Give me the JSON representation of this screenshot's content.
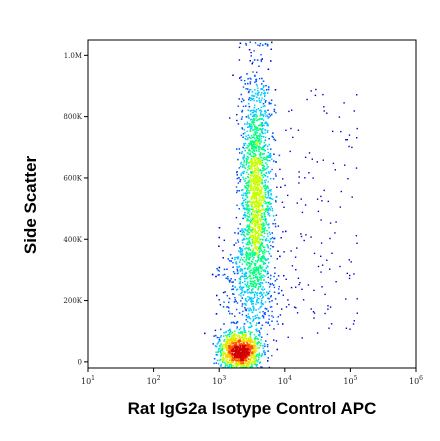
{
  "chart_data": {
    "type": "scatter",
    "subtype": "flow-cytometry-density-dot-plot",
    "xlabel": "Rat IgG2a Isotype Control APC",
    "ylabel": "Side Scatter",
    "x_scale": "log",
    "xlim": [
      10,
      1000000
    ],
    "ylim": [
      -20000,
      1050000
    ],
    "x_ticks": [
      {
        "base": "10",
        "exp": "1",
        "value": 10
      },
      {
        "base": "10",
        "exp": "2",
        "value": 100
      },
      {
        "base": "10",
        "exp": "3",
        "value": 1000
      },
      {
        "base": "10",
        "exp": "4",
        "value": 10000
      },
      {
        "base": "10",
        "exp": "5",
        "value": 100000
      },
      {
        "base": "10",
        "exp": "6",
        "value": 1000000
      }
    ],
    "y_ticks": [
      {
        "label": "0",
        "value": 0
      },
      {
        "label": "200K",
        "value": 200000
      },
      {
        "label": "400K",
        "value": 400000
      },
      {
        "label": "600K",
        "value": 600000
      },
      {
        "label": "800K",
        "value": 800000
      },
      {
        "label": "1.0M",
        "value": 1000000
      }
    ],
    "grid": false,
    "legend": "none",
    "colormap": [
      "#0000c8",
      "#0050ff",
      "#00c8ff",
      "#00ff80",
      "#c8ff00",
      "#ffd000",
      "#ff5000",
      "#d00000"
    ],
    "populations": [
      {
        "name_hidden": true,
        "center_log_x": 3.3,
        "center_y": 40000,
        "spread_log_x": 0.16,
        "spread_y": 30000,
        "weight": 0.32
      },
      {
        "name_hidden": true,
        "center_log_x": 3.55,
        "center_y": 560000,
        "spread_log_x": 0.12,
        "spread_y": 190000,
        "weight": 0.55
      },
      {
        "name_hidden": true,
        "center_log_x": 3.45,
        "center_y": 250000,
        "spread_log_x": 0.22,
        "spread_y": 90000,
        "weight": 0.13
      }
    ]
  }
}
